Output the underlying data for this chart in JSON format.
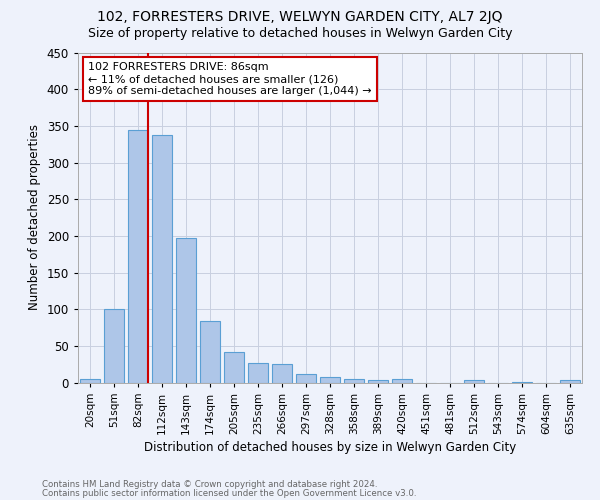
{
  "title": "102, FORRESTERS DRIVE, WELWYN GARDEN CITY, AL7 2JQ",
  "subtitle": "Size of property relative to detached houses in Welwyn Garden City",
  "xlabel": "Distribution of detached houses by size in Welwyn Garden City",
  "ylabel": "Number of detached properties",
  "footnote1": "Contains HM Land Registry data © Crown copyright and database right 2024.",
  "footnote2": "Contains public sector information licensed under the Open Government Licence v3.0.",
  "categories": [
    "20sqm",
    "51sqm",
    "82sqm",
    "112sqm",
    "143sqm",
    "174sqm",
    "205sqm",
    "235sqm",
    "266sqm",
    "297sqm",
    "328sqm",
    "358sqm",
    "389sqm",
    "420sqm",
    "451sqm",
    "481sqm",
    "512sqm",
    "543sqm",
    "574sqm",
    "604sqm",
    "635sqm"
  ],
  "values": [
    5,
    100,
    345,
    337,
    197,
    84,
    42,
    27,
    25,
    11,
    7,
    5,
    3,
    5,
    0,
    0,
    3,
    0,
    1,
    0,
    3
  ],
  "bar_color": "#aec6e8",
  "bar_edge_color": "#5a9fd4",
  "vline_color": "#cc0000",
  "annotation_text": "102 FORRESTERS DRIVE: 86sqm\n← 11% of detached houses are smaller (126)\n89% of semi-detached houses are larger (1,044) →",
  "annotation_box_color": "#ffffff",
  "annotation_box_edge": "#cc0000",
  "ylim": [
    0,
    450
  ],
  "yticks": [
    0,
    50,
    100,
    150,
    200,
    250,
    300,
    350,
    400,
    450
  ],
  "bg_color": "#eef2fb",
  "grid_color": "#c8cfe0",
  "title_fontsize": 10,
  "subtitle_fontsize": 9,
  "bar_width": 0.85
}
